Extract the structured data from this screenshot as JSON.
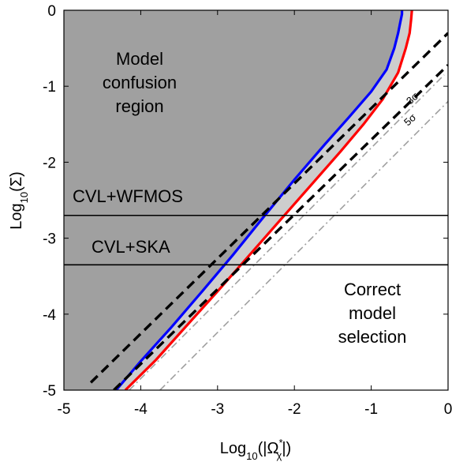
{
  "chart_data": {
    "type": "line",
    "title": "",
    "xlabel": "Log10(|Ωχ*|)",
    "xlabel_parts": {
      "prefix": "Log",
      "sub": "10",
      "open": "(|Ω",
      "sup": "*",
      "sub2": "χ",
      "close": "|)"
    },
    "ylabel": "Log10(Σ)",
    "ylabel_parts": {
      "prefix": "Log",
      "sub": "10",
      "rest": "(Σ)"
    },
    "xlim": [
      -5,
      0
    ],
    "ylim": [
      -5,
      0
    ],
    "xticks": [
      -5,
      -4,
      -3,
      -2,
      -1,
      0
    ],
    "yticks": [
      -5,
      -4,
      -3,
      -2,
      -1,
      0
    ],
    "xtick_labels": [
      "-5",
      "-4",
      "-3",
      "-2",
      "-1",
      "0"
    ],
    "ytick_labels": [
      "-5",
      "-4",
      "-3",
      "-2",
      "-1",
      "0"
    ],
    "grid": false,
    "colors": {
      "confusion_fill": "#a0a0a0",
      "band_fill": "#cdcdcd",
      "blue": "#0000ff",
      "red": "#ff0000",
      "black": "#000000",
      "dashdot": "#a0a0a0"
    },
    "series": [
      {
        "style": "blue-solid",
        "x": [
          -4.32,
          -4.0,
          -3.6,
          -3.2,
          -2.8,
          -2.4,
          -2.0,
          -1.6,
          -1.3,
          -1.0,
          -0.8,
          -0.7,
          -0.65,
          -0.62,
          -0.6,
          -0.6
        ],
        "y": [
          -5.0,
          -4.62,
          -4.17,
          -3.7,
          -3.22,
          -2.72,
          -2.23,
          -1.76,
          -1.42,
          -1.07,
          -0.78,
          -0.5,
          -0.3,
          -0.15,
          -0.05,
          0.0
        ]
      },
      {
        "style": "red-solid",
        "x": [
          -4.2,
          -3.8,
          -3.4,
          -3.0,
          -2.6,
          -2.2,
          -1.8,
          -1.4,
          -1.1,
          -0.85,
          -0.65,
          -0.55,
          -0.5,
          -0.48,
          -0.47
        ],
        "y": [
          -5.0,
          -4.6,
          -4.15,
          -3.7,
          -3.24,
          -2.78,
          -2.32,
          -1.86,
          -1.5,
          -1.17,
          -0.82,
          -0.5,
          -0.3,
          -0.12,
          0.0
        ]
      },
      {
        "style": "black-dashed",
        "x": [
          -4.65,
          0
        ],
        "y": [
          -4.9,
          -0.3
        ]
      },
      {
        "style": "black-dashed",
        "x": [
          -4.35,
          0
        ],
        "y": [
          -5.0,
          -0.72
        ]
      },
      {
        "style": "gray-dashdot",
        "x": [
          -4.15,
          -0.05
        ],
        "y": [
          -5.0,
          -0.85
        ]
      },
      {
        "style": "gray-dashdot",
        "x": [
          -3.75,
          0.0
        ],
        "y": [
          -5.0,
          -1.2
        ]
      }
    ],
    "horizontal_lines": [
      {
        "label": "CVL+WFMOS",
        "y": -2.7
      },
      {
        "label": "CVL+SKA",
        "y": -3.35
      }
    ],
    "annotations": {
      "confusion": [
        "Model",
        "confusion",
        "region"
      ],
      "correct": [
        "Correct",
        "model",
        "selection"
      ],
      "sigma3": "3σ",
      "sigma5": "5σ"
    }
  }
}
